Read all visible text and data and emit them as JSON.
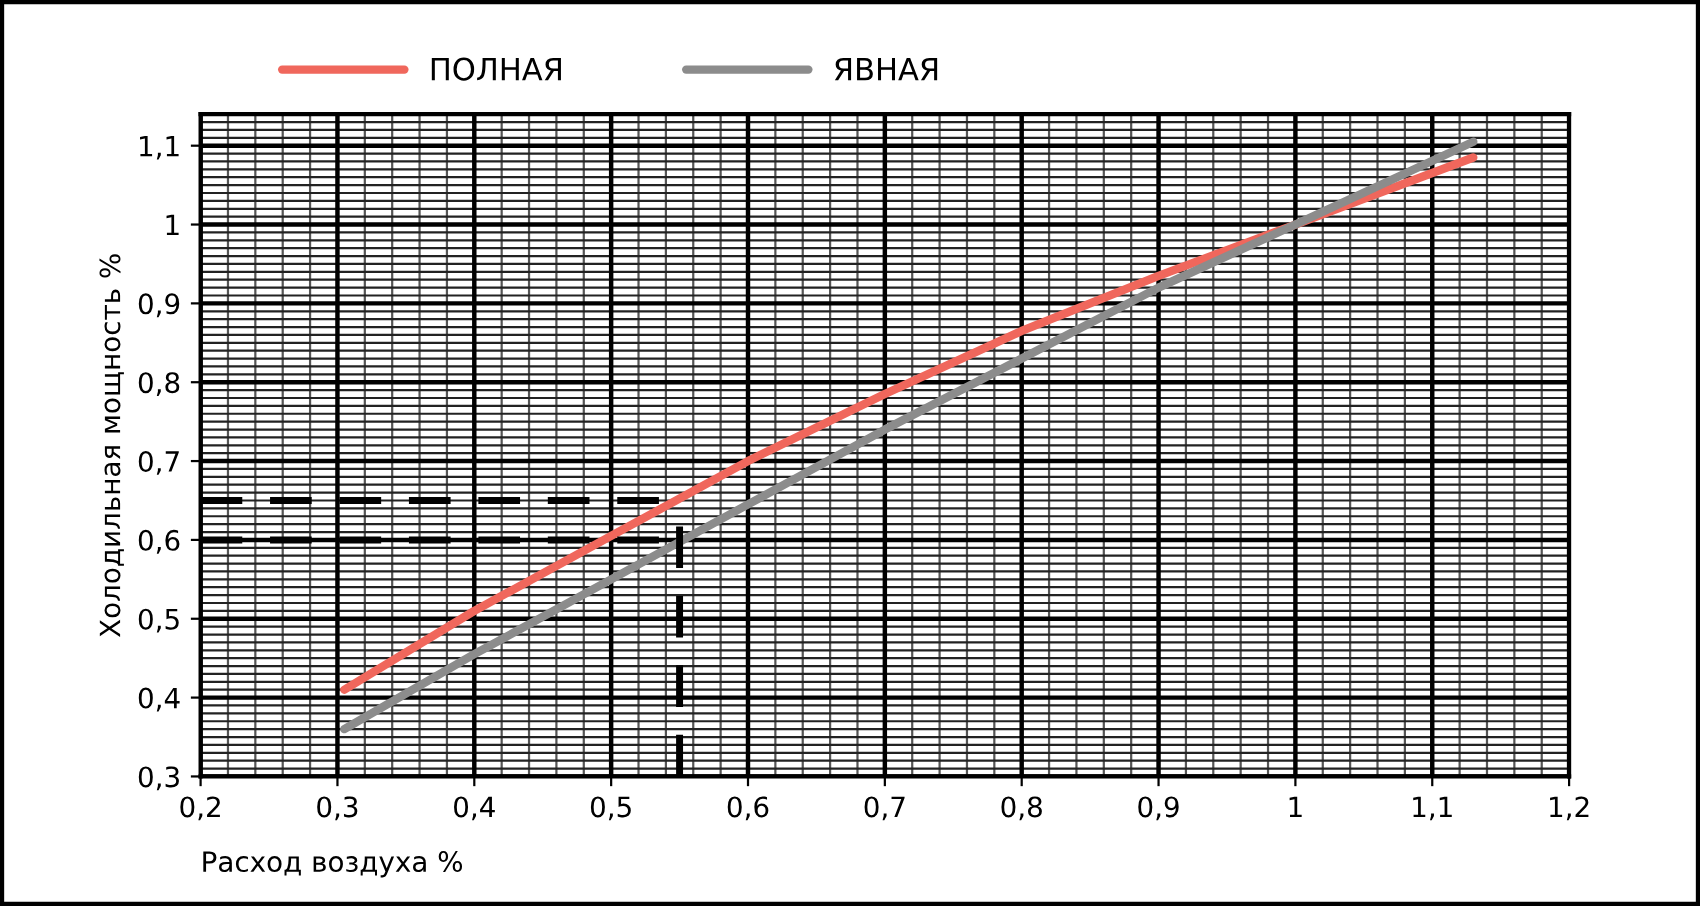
{
  "chart_data": {
    "type": "line",
    "xlabel": "Расход воздуха %",
    "ylabel": "Холодильная мощность %",
    "series": [
      {
        "name": "ПОЛНАЯ",
        "color": "#f0675c",
        "x": [
          0.305,
          0.4,
          0.5,
          0.6,
          0.7,
          0.8,
          0.9,
          1.0,
          1.13
        ],
        "values": [
          0.41,
          0.51,
          0.605,
          0.7,
          0.785,
          0.865,
          0.935,
          1.0,
          1.085
        ]
      },
      {
        "name": "ЯВНАЯ",
        "color": "#8c8c8c",
        "x": [
          0.305,
          0.4,
          0.5,
          0.6,
          0.7,
          0.8,
          0.9,
          1.0,
          1.13
        ],
        "values": [
          0.36,
          0.455,
          0.55,
          0.645,
          0.74,
          0.83,
          0.92,
          1.0,
          1.105
        ]
      }
    ],
    "xlim": [
      0.2,
      1.2
    ],
    "ylim": [
      0.3,
      1.14
    ],
    "xticks": [
      {
        "value": 0.2,
        "label": "0,2"
      },
      {
        "value": 0.3,
        "label": "0,3"
      },
      {
        "value": 0.4,
        "label": "0,4"
      },
      {
        "value": 0.5,
        "label": "0,5"
      },
      {
        "value": 0.6,
        "label": "0,6"
      },
      {
        "value": 0.7,
        "label": "0,7"
      },
      {
        "value": 0.8,
        "label": "0,8"
      },
      {
        "value": 0.9,
        "label": "0,9"
      },
      1,
      {
        "value": 1.1,
        "label": "1,1"
      },
      {
        "value": 1.2,
        "label": "1,2"
      }
    ],
    "yticks": [
      {
        "value": 0.3,
        "label": "0,3"
      },
      {
        "value": 0.4,
        "label": "0,4"
      },
      {
        "value": 0.5,
        "label": "0,5"
      },
      {
        "value": 0.6,
        "label": "0,6"
      },
      {
        "value": 0.7,
        "label": "0,7"
      },
      {
        "value": 0.8,
        "label": "0,8"
      },
      {
        "value": 0.9,
        "label": "0,9"
      },
      1,
      {
        "value": 1.1,
        "label": "1,1"
      }
    ],
    "ref_lines": [
      {
        "axis": "y",
        "value": 0.65,
        "color": "#000000",
        "line_style": "dashed"
      },
      {
        "axis": "y",
        "value": 0.6,
        "color": "#000000",
        "line_style": "dashed"
      },
      {
        "axis": "x",
        "value": 0.55,
        "color": "#000000",
        "line_style": "dashed"
      }
    ],
    "grid": true,
    "legend": "top",
    "line_style": "solid",
    "marker": "none"
  }
}
